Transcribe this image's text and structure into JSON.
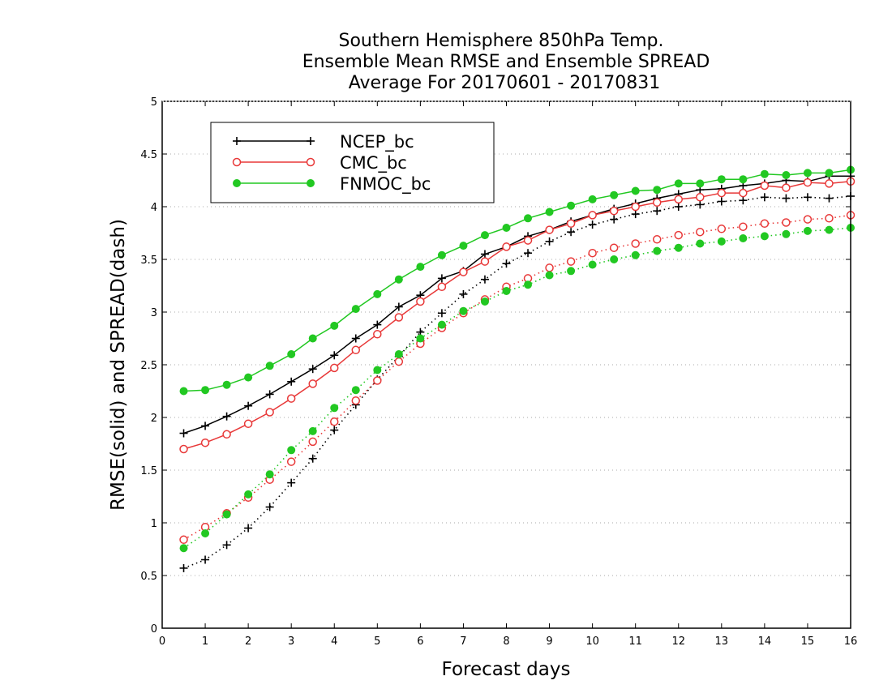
{
  "chart_data": {
    "type": "line",
    "title": [
      "Southern Hemisphere 850hPa Temp.",
      "Ensemble Mean RMSE and Ensemble SPREAD",
      "Average For 20170601 - 20170831"
    ],
    "xlabel": "Forecast days",
    "ylabel": "RMSE(solid)  and  SPREAD(dash)",
    "xlim": [
      0,
      16
    ],
    "ylim": [
      0,
      5
    ],
    "xticks": [
      "0",
      "1",
      "2",
      "3",
      "4",
      "5",
      "6",
      "7",
      "8",
      "9",
      "10",
      "11",
      "12",
      "13",
      "14",
      "15",
      "16"
    ],
    "yticks": [
      "0",
      "0.5",
      "1",
      "1.5",
      "2",
      "2.5",
      "3",
      "3.5",
      "4",
      "4.5",
      "5"
    ],
    "grid": "horizontal dotted",
    "legend_position": "top-left",
    "x": [
      0.5,
      1,
      1.5,
      2,
      2.5,
      3,
      3.5,
      4,
      4.5,
      5,
      5.5,
      6,
      6.5,
      7,
      7.5,
      8,
      8.5,
      9,
      9.5,
      10,
      10.5,
      11,
      11.5,
      12,
      12.5,
      13,
      13.5,
      14,
      14.5,
      15,
      15.5,
      16
    ],
    "series": [
      {
        "name": "NCEP_bc",
        "color": "#000000",
        "marker": "plus",
        "style": "solid",
        "values": [
          1.85,
          1.92,
          2.01,
          2.11,
          2.22,
          2.34,
          2.46,
          2.59,
          2.75,
          2.88,
          3.05,
          3.16,
          3.32,
          3.39,
          3.55,
          3.62,
          3.72,
          3.78,
          3.86,
          3.92,
          3.98,
          4.03,
          4.08,
          4.12,
          4.16,
          4.17,
          4.2,
          4.22,
          4.25,
          4.24,
          4.29,
          4.29
        ]
      },
      {
        "name": "CMC_bc",
        "color": "#e83838",
        "marker": "open-circle",
        "style": "solid",
        "values": [
          1.7,
          1.76,
          1.84,
          1.94,
          2.05,
          2.18,
          2.32,
          2.47,
          2.64,
          2.79,
          2.95,
          3.1,
          3.24,
          3.38,
          3.48,
          3.62,
          3.68,
          3.78,
          3.84,
          3.92,
          3.96,
          4.0,
          4.04,
          4.07,
          4.09,
          4.13,
          4.13,
          4.2,
          4.18,
          4.23,
          4.22,
          4.24
        ]
      },
      {
        "name": "FNMOC_bc",
        "color": "#22c822",
        "marker": "filled-circle",
        "style": "solid",
        "values": [
          2.25,
          2.26,
          2.31,
          2.38,
          2.49,
          2.6,
          2.75,
          2.87,
          3.03,
          3.17,
          3.31,
          3.43,
          3.54,
          3.63,
          3.73,
          3.8,
          3.89,
          3.95,
          4.01,
          4.07,
          4.11,
          4.15,
          4.16,
          4.22,
          4.22,
          4.26,
          4.26,
          4.31,
          4.3,
          4.32,
          4.32,
          4.35
        ]
      },
      {
        "name": "NCEP_bc spread",
        "color": "#000000",
        "marker": "plus",
        "style": "dotted",
        "values": [
          0.57,
          0.65,
          0.79,
          0.95,
          1.15,
          1.38,
          1.61,
          1.88,
          2.12,
          2.36,
          2.58,
          2.81,
          2.99,
          3.17,
          3.31,
          3.46,
          3.56,
          3.67,
          3.76,
          3.83,
          3.88,
          3.93,
          3.96,
          4.0,
          4.02,
          4.05,
          4.06,
          4.09,
          4.08,
          4.09,
          4.08,
          4.1
        ]
      },
      {
        "name": "CMC_bc spread",
        "color": "#e83838",
        "marker": "open-circle",
        "style": "dotted",
        "values": [
          0.84,
          0.96,
          1.09,
          1.24,
          1.41,
          1.58,
          1.77,
          1.96,
          2.16,
          2.35,
          2.53,
          2.7,
          2.85,
          2.99,
          3.12,
          3.24,
          3.32,
          3.42,
          3.48,
          3.56,
          3.61,
          3.65,
          3.69,
          3.73,
          3.76,
          3.79,
          3.81,
          3.84,
          3.85,
          3.88,
          3.89,
          3.92
        ]
      },
      {
        "name": "FNMOC_bc spread",
        "color": "#22c822",
        "marker": "filled-circle",
        "style": "dotted",
        "values": [
          0.76,
          0.9,
          1.08,
          1.27,
          1.46,
          1.69,
          1.87,
          2.09,
          2.26,
          2.45,
          2.6,
          2.75,
          2.88,
          3.01,
          3.1,
          3.2,
          3.26,
          3.35,
          3.39,
          3.45,
          3.5,
          3.54,
          3.58,
          3.61,
          3.65,
          3.67,
          3.7,
          3.72,
          3.74,
          3.77,
          3.78,
          3.8
        ]
      }
    ]
  }
}
